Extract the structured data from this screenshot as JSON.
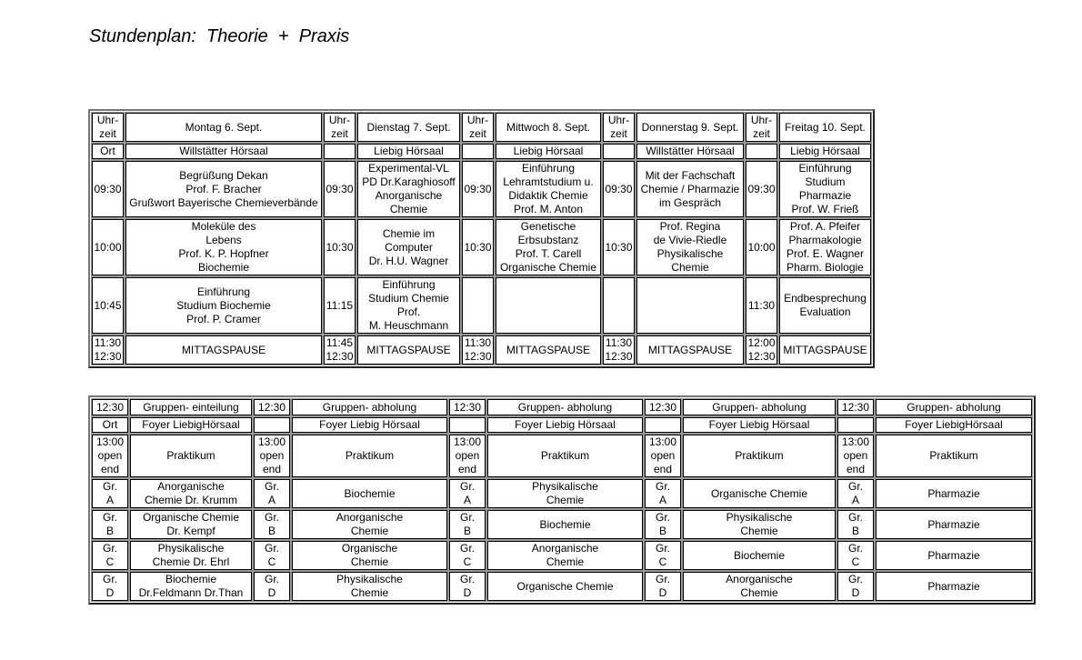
{
  "title": "Stundenplan:  Theorie  +  Praxis",
  "top": {
    "days": [
      {
        "time_header": "Uhr-\nzeit",
        "day": "Montag 6. Sept.",
        "ort_label": "Ort",
        "ort": "Willstätter Hörsaal",
        "slots": [
          {
            "time": "09:30",
            "text": "Begrüßung Dekan\nProf. F. Bracher\nGrußwort Bayerische Chemieverbände"
          },
          {
            "time": "10:00",
            "text": "Moleküle des\nLebens\nProf. K. P. Hopfner\nBiochemie"
          },
          {
            "time": "10:45",
            "text": "Einführung\nStudium Biochemie\nProf. P. Cramer"
          },
          {
            "time": "11:30\n12:30",
            "text": "MITTAGSPAUSE"
          }
        ]
      },
      {
        "time_header": "Uhr-\nzeit",
        "day": "Dienstag 7. Sept.",
        "ort_label": "",
        "ort": "Liebig Hörsaal",
        "slots": [
          {
            "time": "09:30",
            "text": "Experimental-VL\nPD Dr.Karaghiosoff\nAnorganische\nChemie"
          },
          {
            "time": "10:30",
            "text": "Chemie im\nComputer\nDr. H.U. Wagner"
          },
          {
            "time": "11:15",
            "text": "Einführung\nStudium Chemie\nProf.\nM. Heuschmann"
          },
          {
            "time": "11:45\n12:30",
            "text": "MITTAGSPAUSE"
          }
        ]
      },
      {
        "time_header": "Uhr-\nzeit",
        "day": "Mittwoch 8. Sept.",
        "ort_label": "",
        "ort": "Liebig Hörsaal",
        "slots": [
          {
            "time": "09:30",
            "text": "Einführung\nLehramtstudium u.\nDidaktik Chemie\nProf. M. Anton"
          },
          {
            "time": "10:30",
            "text": "Genetische\nErbsubstanz\nProf. T. Carell\nOrganische Chemie"
          },
          {
            "time": "",
            "text": ""
          },
          {
            "time": "11:30\n12:30",
            "text": "MITTAGSPAUSE"
          }
        ]
      },
      {
        "time_header": "Uhr-\nzeit",
        "day": "Donnerstag 9. Sept.",
        "ort_label": "",
        "ort": "Willstätter Hörsaal",
        "slots": [
          {
            "time": "09:30",
            "text": "Mit der Fachschaft\nChemie / Pharmazie\nim Gespräch"
          },
          {
            "time": "10:30",
            "text": "Prof. Regina\nde Vivie-Riedle\nPhysikalische\nChemie"
          },
          {
            "time": "",
            "text": ""
          },
          {
            "time": "11:30\n12:30",
            "text": "MITTAGSPAUSE"
          }
        ]
      },
      {
        "time_header": "Uhr-\nzeit",
        "day": "Freitag 10. Sept.",
        "ort_label": "",
        "ort": "Liebig Hörsaal",
        "slots": [
          {
            "time": "09:30",
            "text": "Einführung\nStudium\nPharmazie\nProf. W. Frieß"
          },
          {
            "time": "10:00",
            "text": "Prof. A. Pfeifer\nPharmakologie\nProf. E. Wagner\nPharm. Biologie"
          },
          {
            "time": "11:30",
            "text": "Endbesprechung\nEvaluation"
          },
          {
            "time": "12:00\n12:30",
            "text": "MITTAGSPAUSE"
          }
        ]
      }
    ]
  },
  "bottom": {
    "days": [
      {
        "time": "12:30",
        "head": "Gruppen- einteilung",
        "ort_label": "Ort",
        "ort": "Foyer LiebigHörsaal",
        "prak_time": "13:00\nopen\nend",
        "prak": "Praktikum",
        "groups": [
          {
            "g": "Gr.\nA",
            "t": "Anorganische\nChemie Dr. Krumm"
          },
          {
            "g": "Gr.\nB",
            "t": "Organische Chemie\nDr. Kempf"
          },
          {
            "g": "Gr.\nC",
            "t": "Physikalische\nChemie Dr. Ehrl"
          },
          {
            "g": "Gr.\nD",
            "t": "Biochemie\nDr.Feldmann Dr.Than"
          }
        ]
      },
      {
        "time": "12:30",
        "head": "Gruppen- abholung",
        "ort_label": "",
        "ort": "Foyer Liebig Hörsaal",
        "prak_time": "13:00\nopen\nend",
        "prak": "Praktikum",
        "groups": [
          {
            "g": "Gr.\nA",
            "t": "Biochemie"
          },
          {
            "g": "Gr.\nB",
            "t": "Anorganische\nChemie"
          },
          {
            "g": "Gr.\nC",
            "t": "Organische\nChemie"
          },
          {
            "g": "Gr.\nD",
            "t": "Physikalische\nChemie"
          }
        ]
      },
      {
        "time": "12:30",
        "head": "Gruppen- abholung",
        "ort_label": "",
        "ort": "Foyer Liebig Hörsaal",
        "prak_time": "13:00\nopen\nend",
        "prak": "Praktikum",
        "groups": [
          {
            "g": "Gr.\nA",
            "t": "Physikalische\nChemie"
          },
          {
            "g": "Gr.\nB",
            "t": "Biochemie"
          },
          {
            "g": "Gr.\nC",
            "t": "Anorganische\nChemie"
          },
          {
            "g": "Gr.\nD",
            "t": "Organische Chemie"
          }
        ]
      },
      {
        "time": "12:30",
        "head": "Gruppen- abholung",
        "ort_label": "",
        "ort": "Foyer Liebig Hörsaal",
        "prak_time": "13:00\nopen\nend",
        "prak": "Praktikum",
        "groups": [
          {
            "g": "Gr.\nA",
            "t": "Organische Chemie"
          },
          {
            "g": "Gr.\nB",
            "t": "Physikalische\nChemie"
          },
          {
            "g": "Gr.\nC",
            "t": "Biochemie"
          },
          {
            "g": "Gr.\nD",
            "t": "Anorganische\nChemie"
          }
        ]
      },
      {
        "time": "12:30",
        "head": "Gruppen- abholung",
        "ort_label": "",
        "ort": "Foyer LiebigHörsaal",
        "prak_time": "13:00\nopen\nend",
        "prak": "Praktikum",
        "groups": [
          {
            "g": "Gr.\nA",
            "t": "Pharmazie"
          },
          {
            "g": "Gr.\nB",
            "t": "Pharmazie"
          },
          {
            "g": "Gr.\nC",
            "t": "Pharmazie"
          },
          {
            "g": "Gr.\nD",
            "t": "Pharmazie"
          }
        ]
      }
    ]
  }
}
